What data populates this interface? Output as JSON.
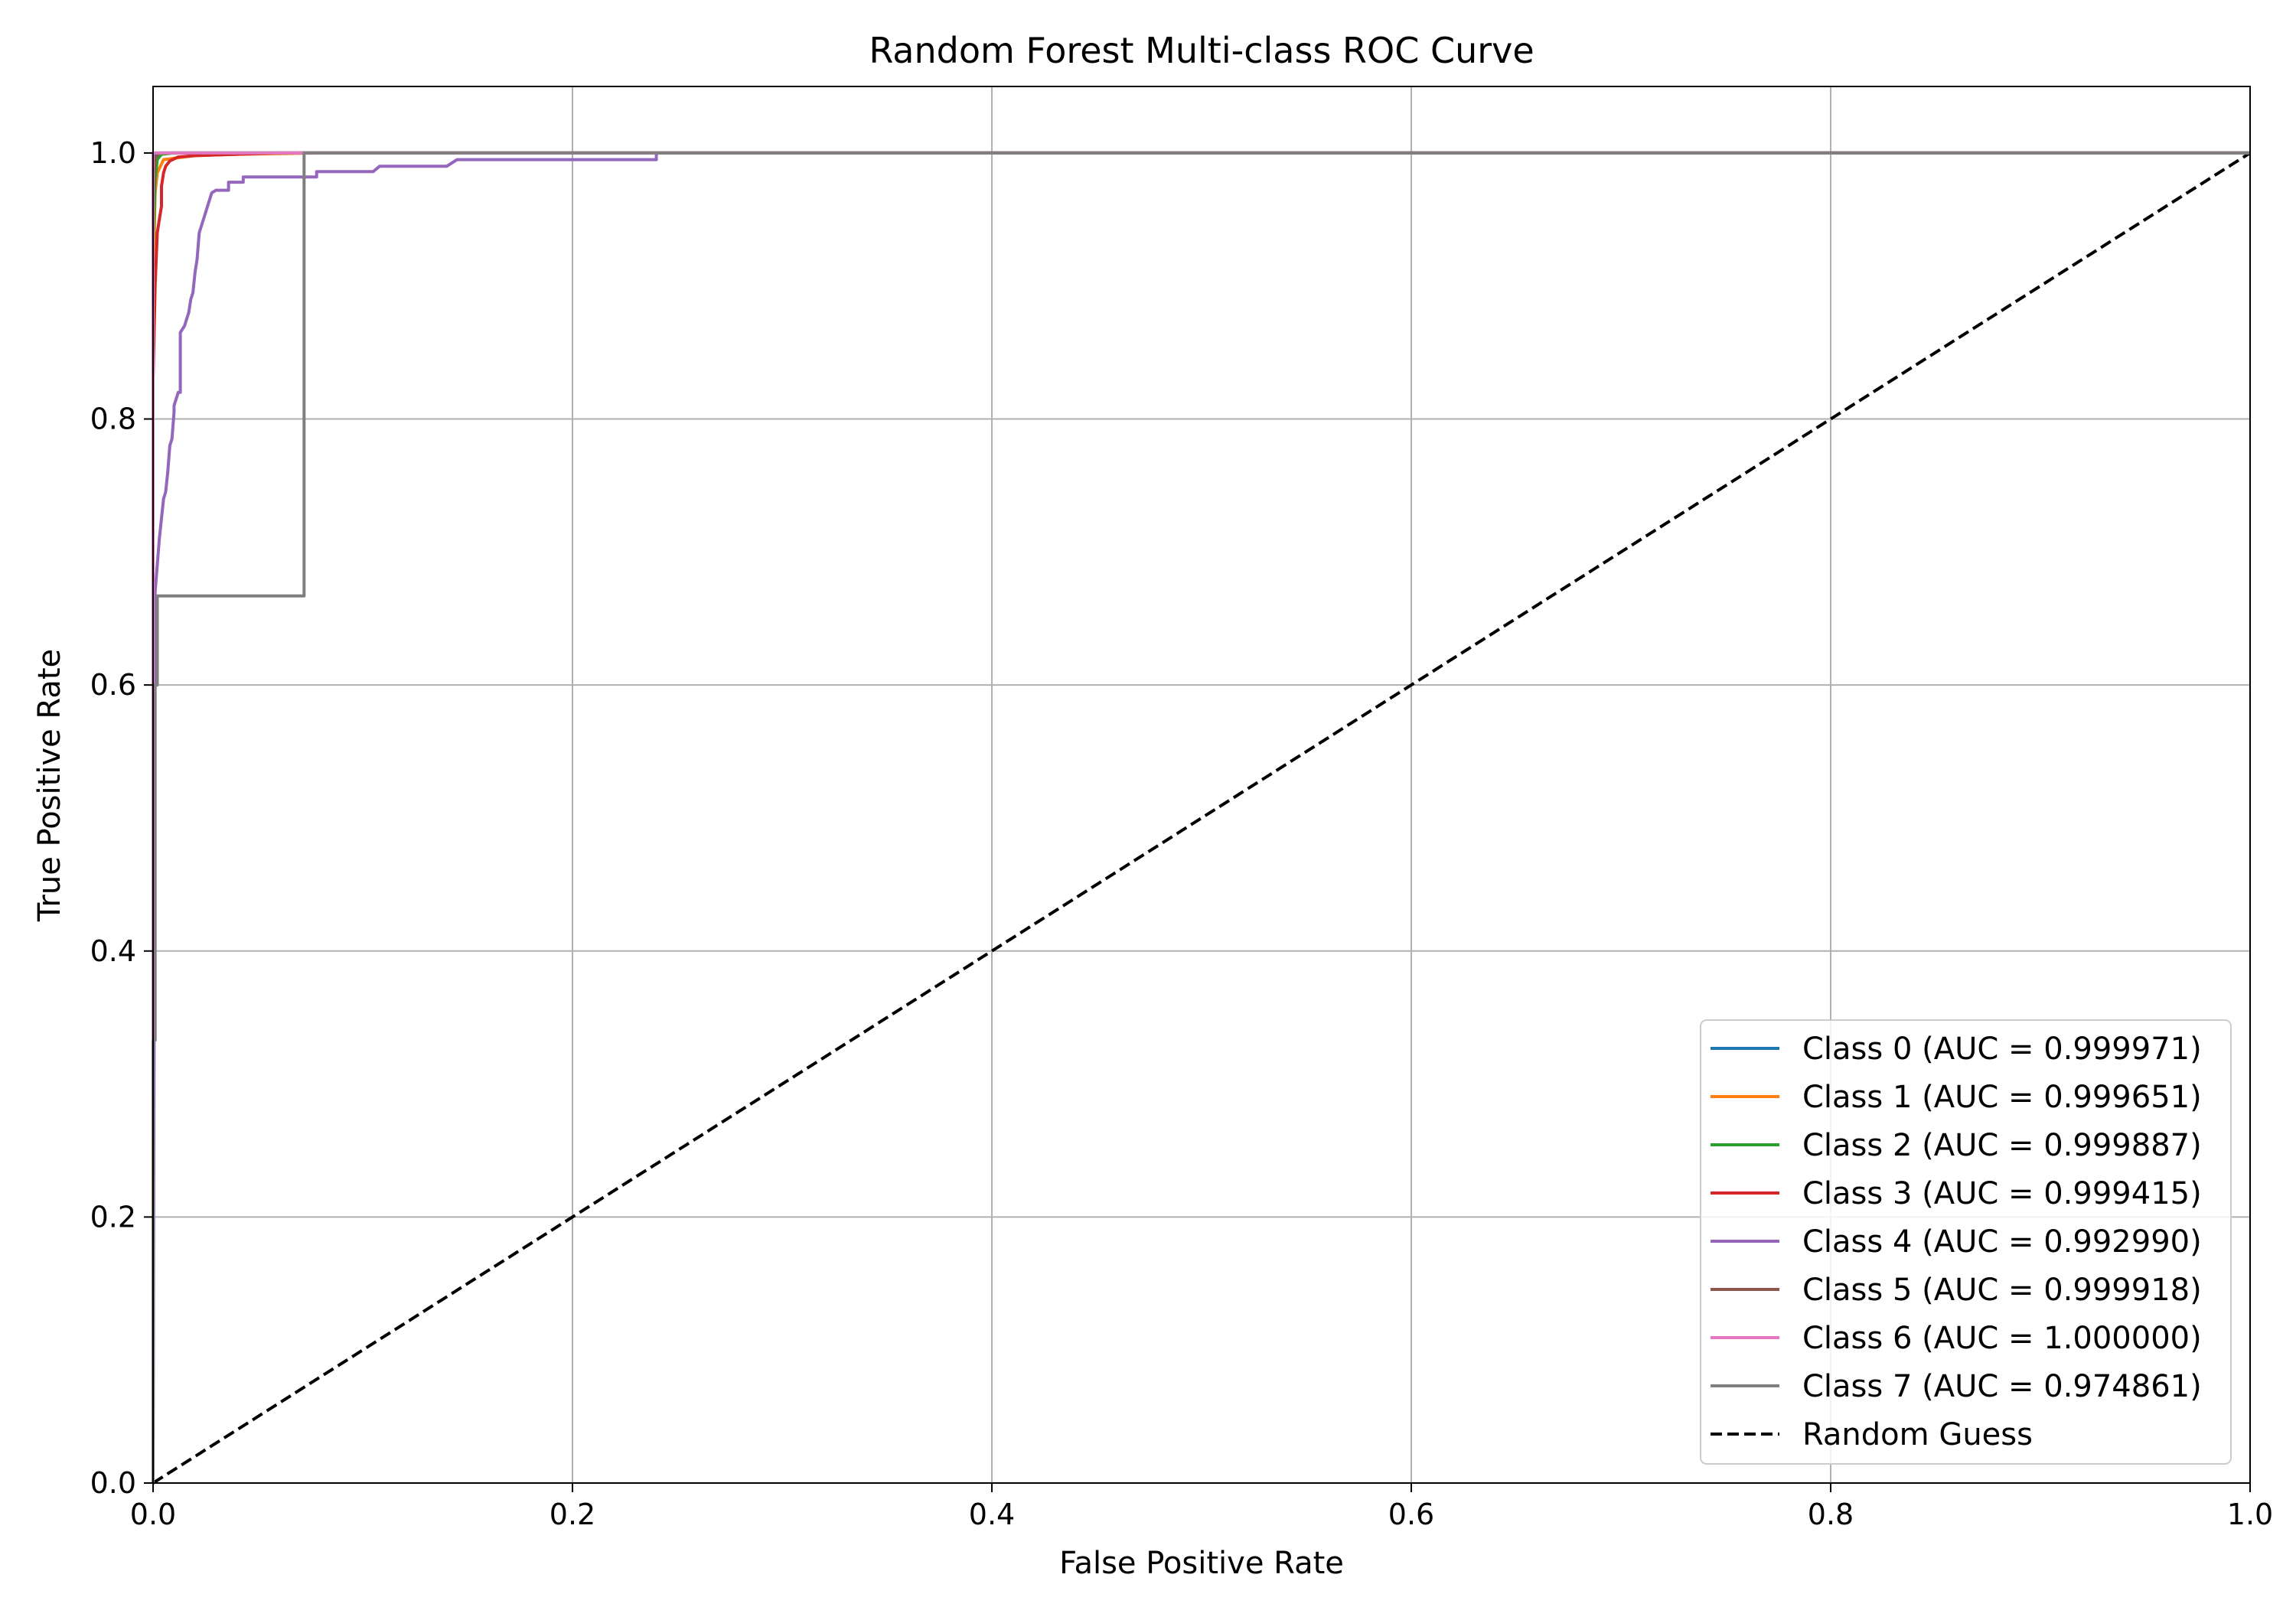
{
  "chart_data": {
    "type": "line",
    "title": "Random Forest Multi-class ROC Curve",
    "xlabel": "False Positive Rate",
    "ylabel": "True Positive Rate",
    "xlim": [
      0.0,
      1.0
    ],
    "ylim": [
      0.0,
      1.05
    ],
    "xticks": [
      "0.0",
      "0.2",
      "0.4",
      "0.6",
      "0.8",
      "1.0"
    ],
    "yticks": [
      "0.0",
      "0.2",
      "0.4",
      "0.6",
      "0.8",
      "1.0"
    ],
    "grid": true,
    "legend_position": "lower-right",
    "series": [
      {
        "name": "Class 0 (AUC = 0.999971)",
        "color": "#1f77b4",
        "x": [
          0,
          0,
          0.0005,
          0.001,
          0.001,
          1.0
        ],
        "y": [
          0,
          0.97,
          0.99,
          0.999,
          1.0,
          1.0
        ]
      },
      {
        "name": "Class 1 (AUC = 0.999651)",
        "color": "#ff7f0e",
        "x": [
          0,
          0,
          0.001,
          0.002,
          0.005,
          0.02,
          0.04,
          0.06,
          0.08,
          1.0
        ],
        "y": [
          0,
          0.9,
          0.97,
          0.985,
          0.995,
          0.998,
          0.999,
          0.9995,
          1.0,
          1.0
        ]
      },
      {
        "name": "Class 2 (AUC = 0.999887)",
        "color": "#2ca02c",
        "x": [
          0,
          0,
          0.001,
          0.002,
          0.004,
          0.01,
          1.0
        ],
        "y": [
          0,
          0.93,
          0.98,
          0.995,
          0.999,
          1.0,
          1.0
        ]
      },
      {
        "name": "Class 3 (AUC = 0.999415)",
        "color": "#d62728",
        "x": [
          0,
          0,
          0.001,
          0.002,
          0.003,
          0.004,
          0.004,
          0.005,
          0.006,
          0.008,
          0.012,
          0.02,
          0.04,
          0.06,
          1.0
        ],
        "y": [
          0,
          0.83,
          0.9,
          0.94,
          0.95,
          0.96,
          0.975,
          0.985,
          0.99,
          0.994,
          0.997,
          0.998,
          0.999,
          1.0,
          1.0
        ]
      },
      {
        "name": "Class 4 (AUC = 0.992990)",
        "color": "#9467bd",
        "x": [
          0,
          0.001,
          0.003,
          0.005,
          0.006,
          0.007,
          0.008,
          0.009,
          0.01,
          0.01,
          0.011,
          0.012,
          0.013,
          0.013,
          0.015,
          0.016,
          0.017,
          0.018,
          0.019,
          0.02,
          0.021,
          0.022,
          0.024,
          0.026,
          0.028,
          0.03,
          0.032,
          0.035,
          0.036,
          0.036,
          0.04,
          0.04,
          0.043,
          0.043,
          0.06,
          0.075,
          0.078,
          0.078,
          0.1,
          0.105,
          0.108,
          0.13,
          0.14,
          0.145,
          0.24,
          0.24,
          1.0
        ],
        "y": [
          0,
          0.67,
          0.71,
          0.74,
          0.745,
          0.76,
          0.78,
          0.785,
          0.805,
          0.81,
          0.815,
          0.82,
          0.82,
          0.865,
          0.87,
          0.875,
          0.88,
          0.89,
          0.895,
          0.91,
          0.92,
          0.94,
          0.95,
          0.96,
          0.97,
          0.972,
          0.972,
          0.972,
          0.972,
          0.978,
          0.978,
          0.978,
          0.978,
          0.982,
          0.982,
          0.982,
          0.982,
          0.986,
          0.986,
          0.986,
          0.99,
          0.99,
          0.99,
          0.995,
          0.995,
          1.0,
          1.0
        ]
      },
      {
        "name": "Class 5 (AUC = 0.999918)",
        "color": "#8c564b",
        "x": [
          0,
          0,
          0.0005,
          0.001,
          0.003,
          1.0
        ],
        "y": [
          0,
          0.95,
          0.985,
          0.996,
          1.0,
          1.0
        ]
      },
      {
        "name": "Class 6 (AUC = 1.000000)",
        "color": "#e377c2",
        "x": [
          0,
          0,
          1.0
        ],
        "y": [
          0,
          1.0,
          1.0
        ]
      },
      {
        "name": "Class 7 (AUC = 0.974861)",
        "color": "#7f7f7f",
        "x": [
          0,
          0,
          0.001,
          0.001,
          0.002,
          0.002,
          0.072,
          0.072,
          1.0
        ],
        "y": [
          0,
          0.333,
          0.333,
          0.6,
          0.6,
          0.667,
          0.667,
          1.0,
          1.0
        ]
      },
      {
        "name": "Random Guess",
        "color": "#000000",
        "dashed": true,
        "x": [
          0,
          1.0
        ],
        "y": [
          0,
          1.0
        ]
      }
    ]
  }
}
